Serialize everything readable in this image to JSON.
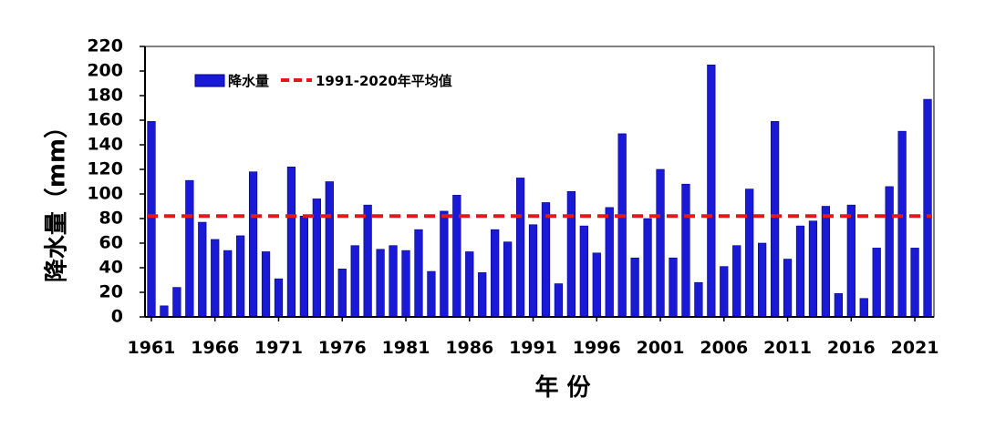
{
  "chart_data": {
    "type": "bar",
    "title": "",
    "xlabel": "年 份",
    "ylabel": "降水量（mm）",
    "ylim": [
      0,
      220
    ],
    "y_ticks": [
      0,
      20,
      40,
      60,
      80,
      100,
      120,
      140,
      160,
      180,
      200,
      220
    ],
    "x_tick_labels": [
      "1961",
      "1966",
      "1971",
      "1976",
      "1981",
      "1986",
      "1991",
      "1996",
      "2001",
      "2006",
      "2011",
      "2016",
      "2021"
    ],
    "grid": false,
    "legend_position": "top-left",
    "categories": [
      "1961",
      "1962",
      "1963",
      "1964",
      "1965",
      "1966",
      "1967",
      "1968",
      "1969",
      "1970",
      "1971",
      "1972",
      "1973",
      "1974",
      "1975",
      "1976",
      "1977",
      "1978",
      "1979",
      "1980",
      "1981",
      "1982",
      "1983",
      "1984",
      "1985",
      "1986",
      "1987",
      "1988",
      "1989",
      "1990",
      "1991",
      "1992",
      "1993",
      "1994",
      "1995",
      "1996",
      "1997",
      "1998",
      "1999",
      "2000",
      "2001",
      "2002",
      "2003",
      "2004",
      "2005",
      "2006",
      "2007",
      "2008",
      "2009",
      "2010",
      "2011",
      "2012",
      "2013",
      "2014",
      "2015",
      "2016",
      "2017",
      "2018",
      "2019",
      "2020",
      "2021",
      "2022"
    ],
    "series": [
      {
        "name": "降水量",
        "color": "#1a1ad6",
        "values": [
          159,
          9,
          24,
          111,
          77,
          63,
          54,
          66,
          118,
          53,
          31,
          122,
          82,
          96,
          110,
          39,
          58,
          91,
          55,
          58,
          54,
          71,
          37,
          86,
          99,
          53,
          36,
          71,
          61,
          113,
          75,
          93,
          27,
          102,
          74,
          52,
          89,
          149,
          48,
          80,
          120,
          48,
          108,
          28,
          205,
          41,
          58,
          104,
          60,
          159,
          47,
          74,
          78,
          90,
          19,
          91,
          15,
          56,
          106,
          151,
          56,
          177
        ]
      }
    ],
    "reference_line": {
      "name": "1991-2020年平均值",
      "value": 82,
      "color": "#e01a1a",
      "style": "dashed"
    }
  }
}
